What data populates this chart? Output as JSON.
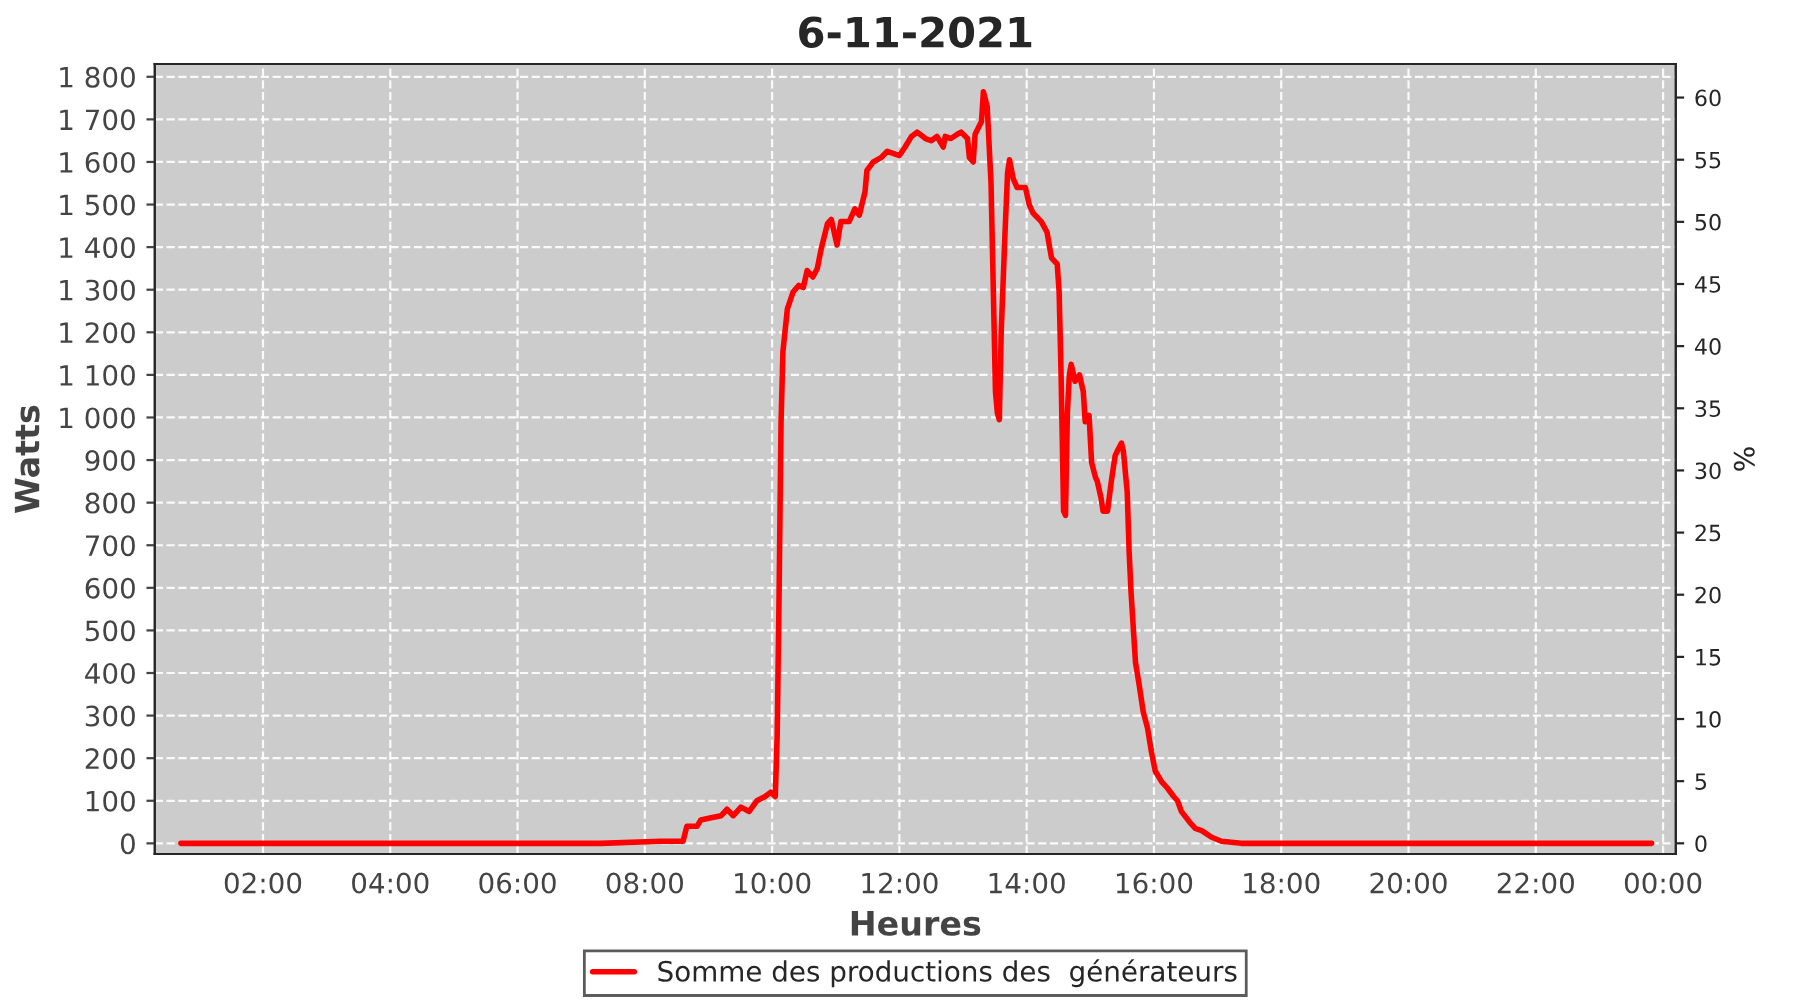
{
  "chart_data": {
    "type": "line",
    "title": "6-11-2021",
    "xlabel": "Heures",
    "ylabel": "Watts",
    "y2label": "%",
    "x": [
      0.71,
      4.17,
      7.31,
      8.25,
      8.6,
      8.66,
      8.82,
      8.88,
      9.04,
      9.2,
      9.29,
      9.39,
      9.51,
      9.64,
      9.76,
      9.89,
      9.98,
      10.05,
      10.08,
      10.11,
      10.14,
      10.17,
      10.24,
      10.33,
      10.42,
      10.49,
      10.55,
      10.64,
      10.71,
      10.77,
      10.87,
      10.93,
      11.02,
      11.08,
      11.21,
      11.3,
      11.37,
      11.46,
      11.49,
      11.59,
      11.71,
      11.81,
      11.9,
      12.0,
      12.09,
      12.19,
      12.28,
      12.41,
      12.5,
      12.59,
      12.69,
      12.72,
      12.81,
      12.91,
      12.97,
      13.07,
      13.1,
      13.16,
      13.19,
      13.29,
      13.32,
      13.38,
      13.44,
      13.51,
      13.54,
      13.57,
      13.6,
      13.66,
      13.7,
      13.73,
      13.79,
      13.85,
      13.98,
      14.04,
      14.1,
      14.23,
      14.32,
      14.39,
      14.45,
      14.48,
      14.51,
      14.54,
      14.58,
      14.61,
      14.64,
      14.67,
      14.7,
      14.76,
      14.83,
      14.89,
      14.92,
      14.98,
      15.02,
      15.08,
      15.11,
      15.17,
      15.2,
      15.27,
      15.33,
      15.39,
      15.42,
      15.49,
      15.52,
      15.58,
      15.61,
      15.64,
      15.68,
      15.71,
      15.77,
      15.83,
      15.9,
      15.96,
      16.02,
      16.12,
      16.21,
      16.31,
      16.37,
      16.43,
      16.56,
      16.65,
      16.75,
      16.9,
      17.06,
      17.37,
      19.89,
      23.82
    ],
    "series": [
      {
        "name": "Somme des productions des  générateurs",
        "color": "#ff0000",
        "values": [
          0,
          0,
          0,
          5,
          5,
          40,
          40,
          55,
          60,
          65,
          80,
          65,
          85,
          75,
          100,
          110,
          120,
          110,
          255,
          590,
          985,
          1155,
          1255,
          1295,
          1310,
          1305,
          1345,
          1330,
          1350,
          1395,
          1455,
          1465,
          1405,
          1460,
          1460,
          1490,
          1475,
          1530,
          1580,
          1600,
          1610,
          1625,
          1620,
          1615,
          1635,
          1660,
          1670,
          1655,
          1650,
          1660,
          1635,
          1660,
          1655,
          1665,
          1670,
          1655,
          1610,
          1600,
          1665,
          1695,
          1765,
          1730,
          1550,
          1060,
          1010,
          995,
          1200,
          1435,
          1575,
          1605,
          1560,
          1540,
          1540,
          1500,
          1480,
          1460,
          1435,
          1375,
          1365,
          1360,
          1295,
          1105,
          780,
          770,
          1010,
          1100,
          1125,
          1085,
          1100,
          1060,
          990,
          1005,
          895,
          860,
          850,
          810,
          780,
          780,
          850,
          910,
          920,
          940,
          920,
          825,
          685,
          590,
          495,
          425,
          370,
          310,
          270,
          215,
          170,
          145,
          130,
          110,
          100,
          75,
          50,
          35,
          30,
          15,
          5,
          0,
          0,
          0
        ]
      }
    ],
    "xlim": [
      0.3,
      24.2
    ],
    "xticks": [
      {
        "value": 2,
        "label": "02:00"
      },
      {
        "value": 4,
        "label": "04:00"
      },
      {
        "value": 6,
        "label": "06:00"
      },
      {
        "value": 8,
        "label": "08:00"
      },
      {
        "value": 10,
        "label": "10:00"
      },
      {
        "value": 12,
        "label": "12:00"
      },
      {
        "value": 14,
        "label": "14:00"
      },
      {
        "value": 16,
        "label": "16:00"
      },
      {
        "value": 18,
        "label": "18:00"
      },
      {
        "value": 20,
        "label": "20:00"
      },
      {
        "value": 22,
        "label": "22:00"
      },
      {
        "value": 24,
        "label": "00:00"
      }
    ],
    "ylim": [
      -25,
      1830
    ],
    "yticks": [
      0,
      100,
      200,
      300,
      400,
      500,
      600,
      700,
      800,
      900,
      {
        "value": 1000,
        "label": "1 000"
      },
      {
        "value": 1100,
        "label": "1 100"
      },
      {
        "value": 1200,
        "label": "1 200"
      },
      {
        "value": 1300,
        "label": "1 300"
      },
      {
        "value": 1400,
        "label": "1 400"
      },
      {
        "value": 1500,
        "label": "1 500"
      },
      {
        "value": 1600,
        "label": "1 600"
      },
      {
        "value": 1700,
        "label": "1 700"
      },
      {
        "value": 1800,
        "label": "1 800"
      }
    ],
    "y2lim": [
      -0.86,
      62.7
    ],
    "y2ticks": [
      0,
      5,
      10,
      15,
      20,
      25,
      30,
      35,
      40,
      45,
      50,
      55,
      60
    ],
    "grid": true,
    "legend": "bottom",
    "line_style": "solid"
  }
}
